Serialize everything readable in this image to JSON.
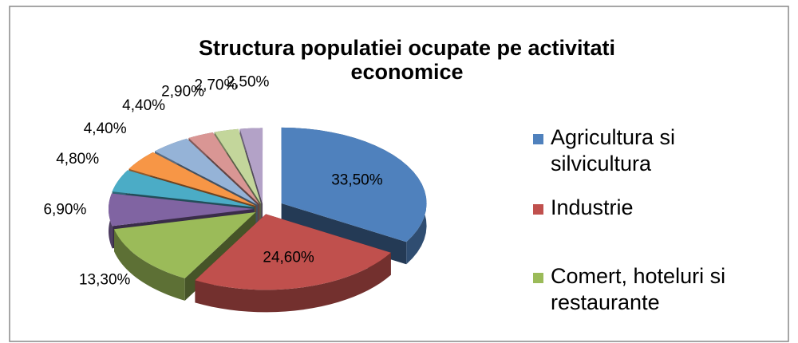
{
  "chart_data": {
    "type": "pie3d",
    "title": "Structura populatiei ocupate pe activitati economice",
    "categories": [
      "Agricultura si silvicultura",
      "Industrie",
      "Comert, hoteluri si restaurante",
      null,
      null,
      null,
      null,
      null,
      null,
      null
    ],
    "values": [
      33.5,
      24.6,
      13.3,
      6.9,
      4.8,
      4.4,
      4.4,
      2.9,
      2.7,
      2.5
    ],
    "value_labels": [
      "33,50%",
      "24,60%",
      "13,30%",
      "6,90%",
      "4,80%",
      "4,40%",
      "4,40%",
      "2,90%",
      "2,70%",
      "2,50%"
    ],
    "colors": [
      "#4f81bd",
      "#c0504d",
      "#9bbb59",
      "#8064a2",
      "#4bacc6",
      "#f79646",
      "#95b3d7",
      "#d99694",
      "#c3d69b",
      "#b3a2c7"
    ],
    "legend": "right"
  }
}
